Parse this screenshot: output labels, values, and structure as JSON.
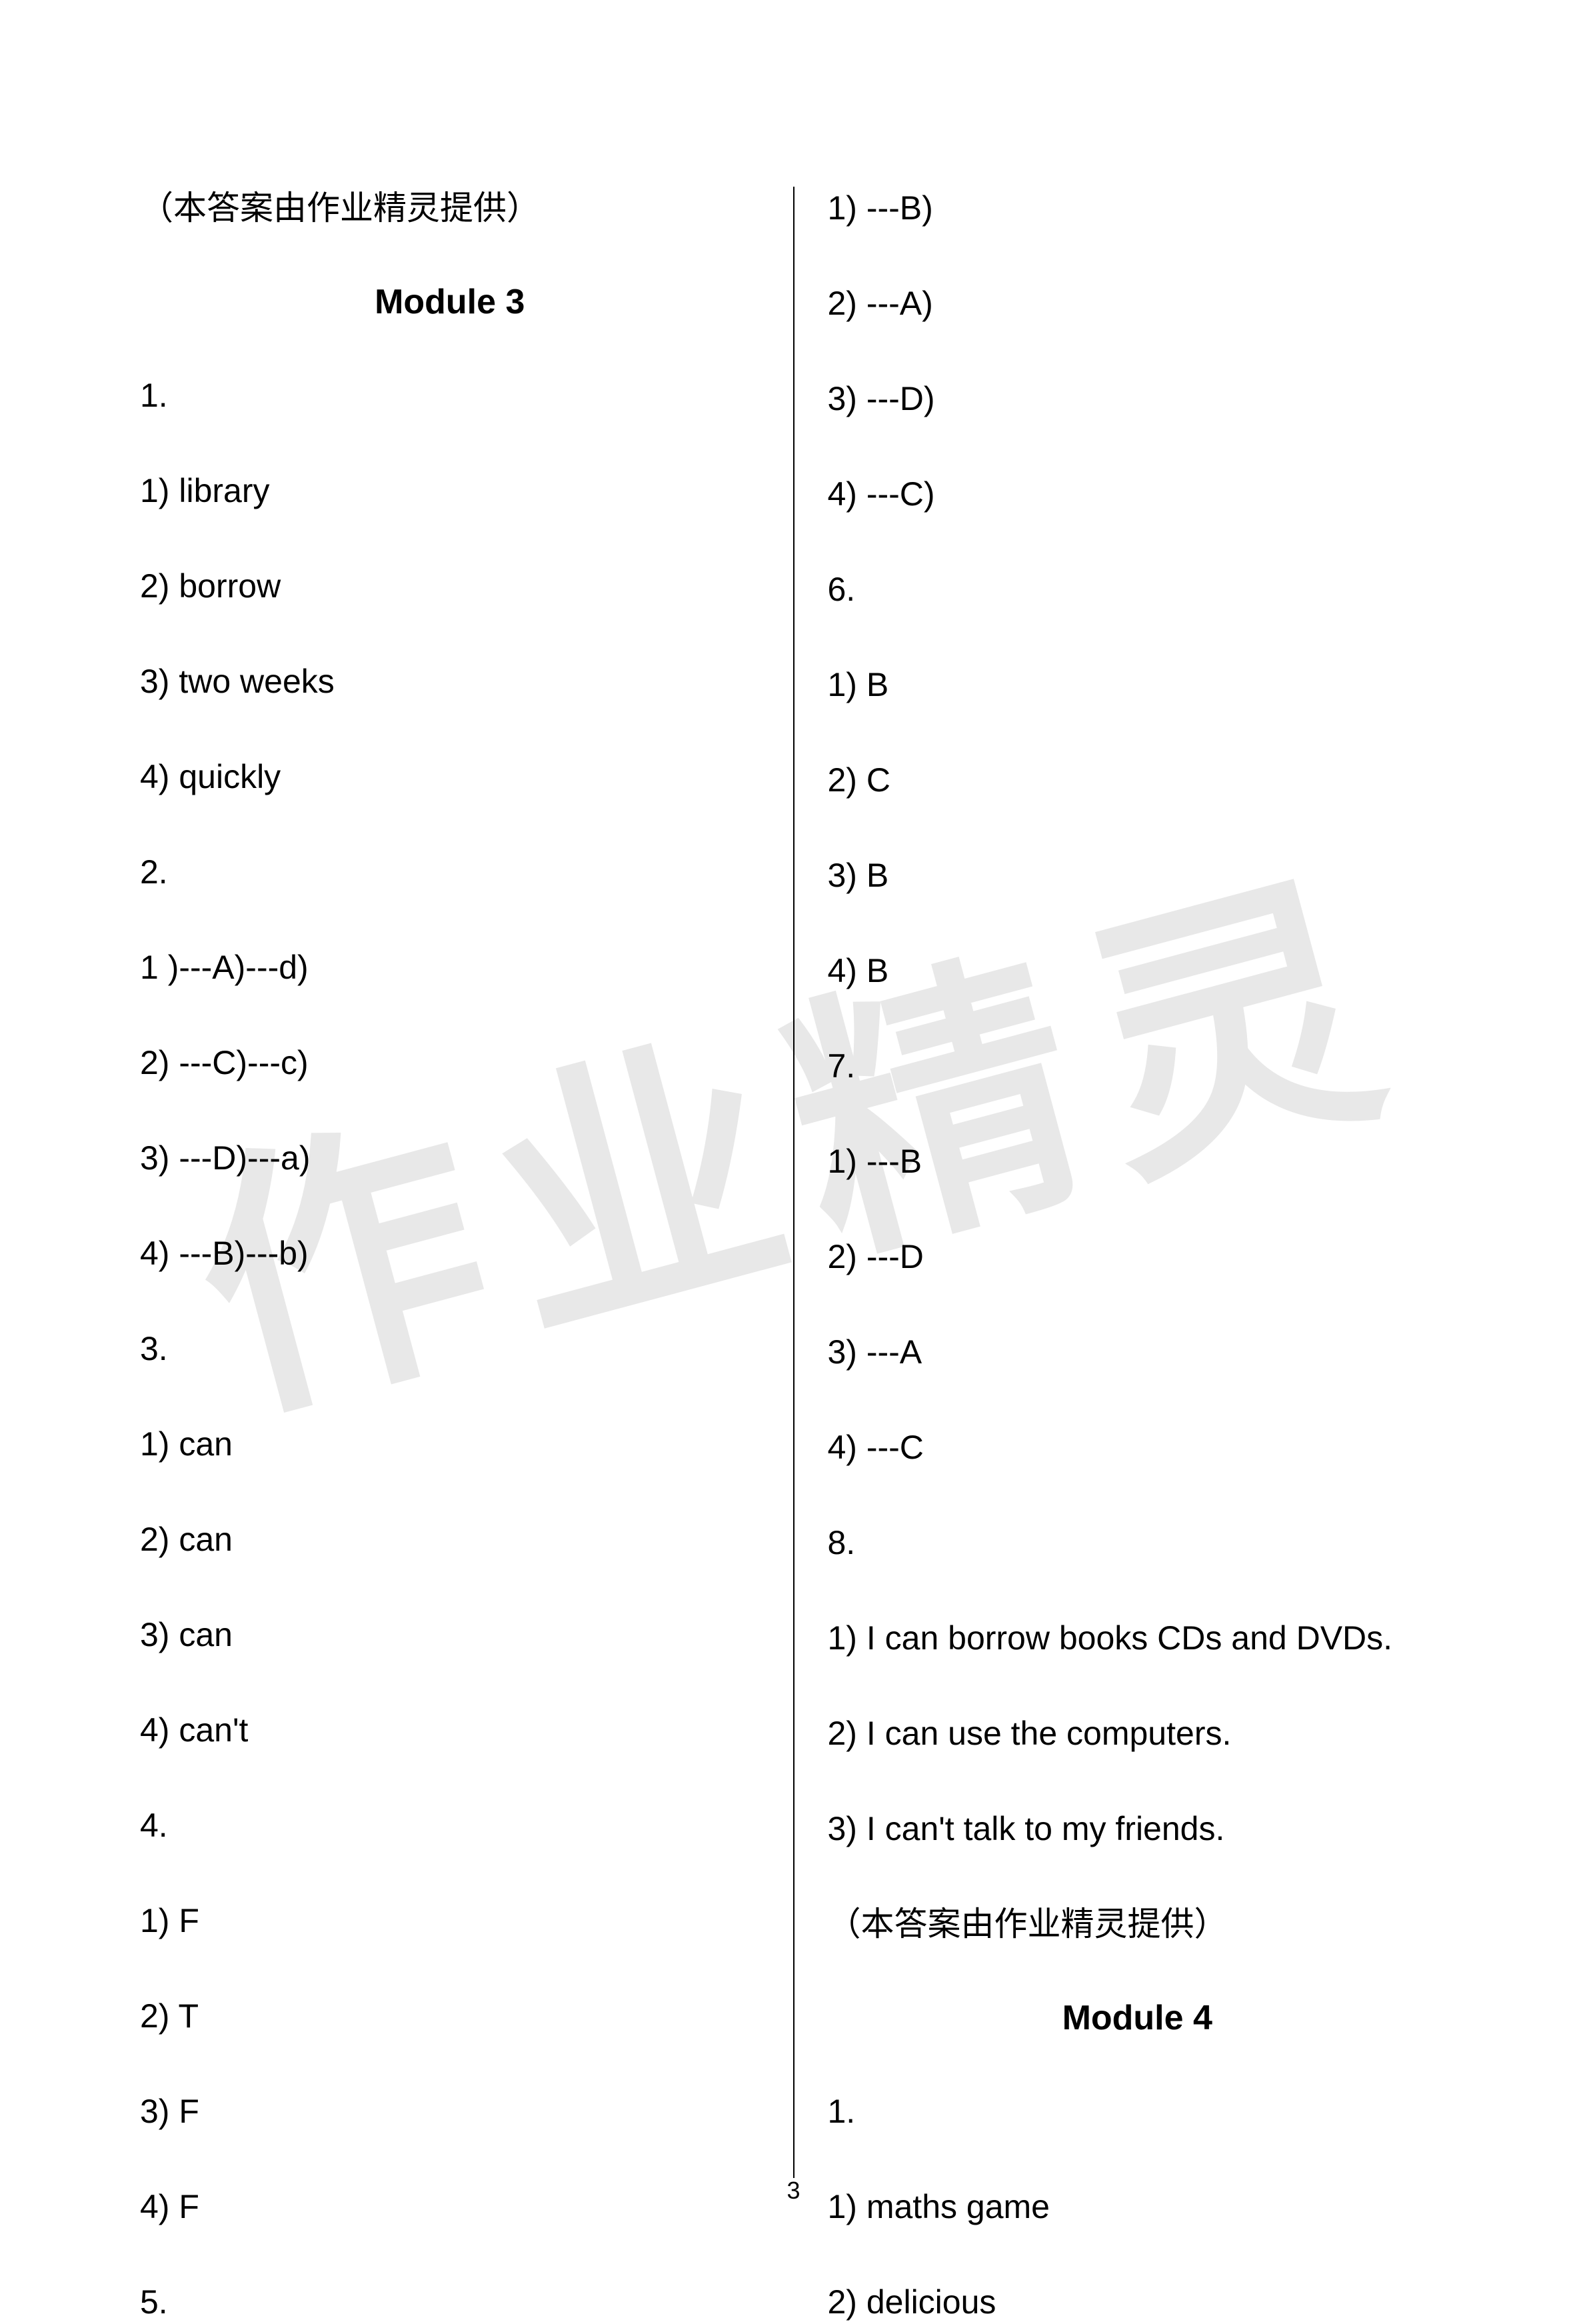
{
  "watermark_text": "作业精灵",
  "page_number": "3",
  "left_column": {
    "attribution": "（本答案由作业精灵提供）",
    "module_heading": "Module 3",
    "lines": [
      "1.",
      "1) library",
      "2) borrow",
      "3) two weeks",
      "4) quickly",
      "2.",
      "1 )---A)---d)",
      "2) ---C)---c)",
      "3) ---D)---a)",
      "4) ---B)---b)",
      "3.",
      "1) can",
      "2) can",
      "3) can",
      "4) can't",
      "4.",
      "1) F",
      "2) T",
      "3) F",
      "4) F",
      "5."
    ]
  },
  "right_column": {
    "lines_before": [
      "1) ---B)",
      "2) ---A)",
      "3) ---D)",
      "4) ---C)",
      "6.",
      "1) B",
      "2) C",
      "3) B",
      "4) B",
      "7.",
      "1) ---B",
      "2) ---D",
      "3) ---A",
      "4) ---C",
      "8.",
      "1) I can borrow books CDs and DVDs.",
      "2) I can use the computers.",
      "3) I can't talk to my friends.",
      "（本答案由作业精灵提供）"
    ],
    "module_heading": "Module 4",
    "lines_after": [
      "1.",
      "1) maths game",
      "2) delicious"
    ]
  }
}
